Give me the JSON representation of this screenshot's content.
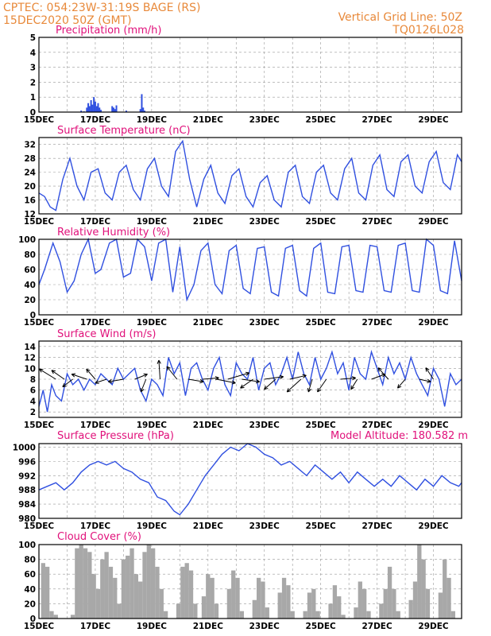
{
  "header": {
    "line1": "CPTEC:   054:23W-31:19S   BAGE (RS)",
    "line2": "15DEC2020  50Z  (GMT)",
    "grid_note": "Vertical Grid Line: 50Z",
    "code": "TQ0126L028"
  },
  "model_altitude": "Model Altitude: 180.582 m",
  "x_ticks": [
    "15DEC",
    "17DEC",
    "19DEC",
    "21DEC",
    "23DEC",
    "25DEC",
    "27DEC",
    "29DEC"
  ],
  "colors": {
    "series": "#3050e0",
    "title": "#e0107a",
    "header": "#e8893a",
    "cloud": "#a8a8a8",
    "grid": "#999999"
  },
  "chart_data": [
    {
      "type": "bar",
      "title": "Precipitation  (mm/h)",
      "ylim": [
        0,
        5
      ],
      "y_ticks": [
        0,
        1,
        2,
        3,
        4,
        5
      ],
      "xlim": [
        0,
        15
      ],
      "points": [
        [
          1.5,
          0.1
        ],
        [
          1.6,
          0.05
        ],
        [
          1.7,
          0.3
        ],
        [
          1.75,
          0.6
        ],
        [
          1.8,
          0.4
        ],
        [
          1.85,
          0.8
        ],
        [
          1.9,
          0.5
        ],
        [
          1.95,
          1.0
        ],
        [
          2.0,
          0.7
        ],
        [
          2.05,
          0.4
        ],
        [
          2.1,
          0.6
        ],
        [
          2.15,
          0.3
        ],
        [
          2.2,
          0.15
        ],
        [
          2.6,
          0.4
        ],
        [
          2.65,
          0.3
        ],
        [
          2.7,
          0.2
        ],
        [
          2.75,
          0.45
        ],
        [
          3.1,
          0.1
        ],
        [
          3.6,
          0.2
        ],
        [
          3.65,
          1.2
        ],
        [
          3.7,
          0.3
        ],
        [
          3.75,
          0.1
        ]
      ]
    },
    {
      "type": "line",
      "title": "Surface Temperature (nC)",
      "ylim": [
        12,
        34
      ],
      "y_ticks": [
        12,
        16,
        20,
        24,
        28,
        32
      ],
      "xlim": [
        0,
        15
      ],
      "x": [
        0,
        0.2,
        0.4,
        0.6,
        0.85,
        1.1,
        1.35,
        1.6,
        1.85,
        2.1,
        2.35,
        2.6,
        2.85,
        3.1,
        3.35,
        3.6,
        3.85,
        4.1,
        4.35,
        4.6,
        4.85,
        5.1,
        5.35,
        5.6,
        5.85,
        6.1,
        6.35,
        6.6,
        6.85,
        7.1,
        7.35,
        7.6,
        7.85,
        8.1,
        8.35,
        8.6,
        8.85,
        9.1,
        9.35,
        9.6,
        9.85,
        10.1,
        10.35,
        10.6,
        10.85,
        11.1,
        11.35,
        11.6,
        11.85,
        12.1,
        12.35,
        12.6,
        12.85,
        13.1,
        13.35,
        13.6,
        13.85,
        14.1,
        14.35,
        14.6,
        14.85,
        15
      ],
      "values": [
        18,
        17,
        14,
        13,
        22,
        28,
        20,
        16,
        24,
        25,
        18,
        16,
        24,
        26,
        19,
        16,
        25,
        28,
        20,
        17,
        30,
        33,
        22,
        14,
        22,
        26,
        18,
        15,
        23,
        25,
        17,
        14,
        21,
        23,
        16,
        14,
        24,
        26,
        17,
        15,
        24,
        26,
        18,
        16,
        25,
        28,
        18,
        16,
        26,
        29,
        19,
        17,
        27,
        29,
        20,
        18,
        27,
        30,
        21,
        19,
        29,
        27
      ]
    },
    {
      "type": "line",
      "title": "Relative Humidity  (%)",
      "ylim": [
        0,
        100
      ],
      "y_ticks": [
        0,
        20,
        40,
        60,
        80,
        100
      ],
      "xlim": [
        0,
        15
      ],
      "x": [
        0,
        0.2,
        0.5,
        0.75,
        1.0,
        1.25,
        1.5,
        1.75,
        2.0,
        2.2,
        2.5,
        2.75,
        3.0,
        3.25,
        3.5,
        3.75,
        4.0,
        4.25,
        4.5,
        4.75,
        5.0,
        5.25,
        5.5,
        5.75,
        6.0,
        6.25,
        6.5,
        6.75,
        7.0,
        7.25,
        7.5,
        7.75,
        8.0,
        8.25,
        8.5,
        8.75,
        9.0,
        9.25,
        9.5,
        9.75,
        10.0,
        10.25,
        10.5,
        10.75,
        11.0,
        11.25,
        11.5,
        11.75,
        12.0,
        12.25,
        12.5,
        12.75,
        13.0,
        13.25,
        13.5,
        13.75,
        14.0,
        14.25,
        14.5,
        14.75,
        15
      ],
      "values": [
        40,
        60,
        95,
        70,
        30,
        45,
        80,
        100,
        55,
        60,
        95,
        100,
        50,
        55,
        100,
        90,
        45,
        95,
        100,
        30,
        90,
        20,
        40,
        85,
        95,
        40,
        28,
        85,
        92,
        35,
        28,
        88,
        90,
        30,
        25,
        88,
        92,
        32,
        25,
        88,
        95,
        30,
        28,
        90,
        92,
        32,
        30,
        92,
        90,
        32,
        30,
        92,
        95,
        32,
        30,
        100,
        92,
        32,
        28,
        98,
        45
      ]
    },
    {
      "type": "line",
      "title": "Surface Wind  (m/s)",
      "ylim": [
        1,
        15
      ],
      "y_ticks": [
        2,
        4,
        6,
        8,
        10,
        12,
        14
      ],
      "xlim": [
        0,
        15
      ],
      "x": [
        0,
        0.15,
        0.3,
        0.45,
        0.6,
        0.8,
        1.0,
        1.2,
        1.4,
        1.6,
        1.8,
        2.0,
        2.2,
        2.4,
        2.6,
        2.8,
        3.0,
        3.2,
        3.4,
        3.6,
        3.8,
        4.0,
        4.2,
        4.4,
        4.6,
        4.8,
        5.0,
        5.2,
        5.4,
        5.6,
        5.8,
        6.0,
        6.2,
        6.4,
        6.6,
        6.8,
        7.0,
        7.2,
        7.4,
        7.6,
        7.8,
        8.0,
        8.2,
        8.4,
        8.6,
        8.8,
        9.0,
        9.2,
        9.4,
        9.6,
        9.8,
        10.0,
        10.2,
        10.4,
        10.6,
        10.8,
        11.0,
        11.2,
        11.4,
        11.6,
        11.8,
        12.0,
        12.2,
        12.4,
        12.6,
        12.8,
        13.0,
        13.2,
        13.4,
        13.6,
        13.8,
        14.0,
        14.2,
        14.4,
        14.6,
        14.8,
        15
      ],
      "values": [
        3,
        6,
        2,
        7,
        5,
        4,
        9,
        7,
        8,
        6,
        8,
        7,
        9,
        8,
        7,
        10,
        8,
        9,
        10,
        6,
        4,
        8,
        7,
        5,
        12,
        9,
        11,
        5,
        10,
        11,
        8,
        6,
        10,
        12,
        7,
        5,
        11,
        9,
        8,
        12,
        6,
        10,
        11,
        7,
        9,
        12,
        8,
        13,
        9,
        7,
        12,
        8,
        10,
        13,
        9,
        11,
        6,
        12,
        9,
        8,
        13,
        10,
        7,
        12,
        9,
        11,
        8,
        12,
        9,
        7,
        5,
        10,
        8,
        3,
        9,
        7,
        8
      ]
    },
    {
      "type": "line",
      "title": "Surface Pressure (hPa)",
      "ylim": [
        980,
        1001
      ],
      "y_ticks": [
        980,
        984,
        988,
        992,
        996,
        1000
      ],
      "xlim": [
        0,
        15
      ],
      "x": [
        0,
        0.3,
        0.6,
        0.9,
        1.2,
        1.5,
        1.8,
        2.1,
        2.4,
        2.7,
        3.0,
        3.3,
        3.6,
        3.9,
        4.2,
        4.5,
        4.8,
        5.0,
        5.3,
        5.6,
        5.9,
        6.2,
        6.5,
        6.8,
        7.1,
        7.4,
        7.7,
        8.0,
        8.3,
        8.6,
        8.9,
        9.2,
        9.5,
        9.8,
        10.1,
        10.4,
        10.7,
        11.0,
        11.3,
        11.6,
        11.9,
        12.2,
        12.5,
        12.8,
        13.1,
        13.4,
        13.7,
        14.0,
        14.3,
        14.6,
        14.9,
        15
      ],
      "values": [
        988,
        989,
        990,
        988,
        990,
        993,
        995,
        996,
        995,
        996,
        994,
        993,
        991,
        990,
        986,
        985,
        982,
        981,
        984,
        988,
        992,
        995,
        998,
        1000,
        999,
        1001,
        1000,
        998,
        997,
        995,
        996,
        994,
        992,
        995,
        993,
        991,
        993,
        990,
        993,
        991,
        989,
        991,
        989,
        992,
        990,
        988,
        991,
        989,
        992,
        990,
        989,
        990
      ]
    },
    {
      "type": "bar",
      "title": "Cloud Cover  (%)",
      "ylim": [
        0,
        100
      ],
      "y_ticks": [
        0,
        20,
        40,
        60,
        80,
        100
      ],
      "xlim": [
        0,
        15
      ],
      "x": [
        0.15,
        0.3,
        0.45,
        0.6,
        0.75,
        0.9,
        1.05,
        1.2,
        1.35,
        1.5,
        1.65,
        1.8,
        1.95,
        2.1,
        2.25,
        2.4,
        2.55,
        2.7,
        2.85,
        3.0,
        3.15,
        3.3,
        3.45,
        3.6,
        3.75,
        3.9,
        4.05,
        4.2,
        4.35,
        4.5,
        4.65,
        4.8,
        4.95,
        5.1,
        5.25,
        5.4,
        5.55,
        5.7,
        5.85,
        6.0,
        6.15,
        6.3,
        6.45,
        6.6,
        6.75,
        6.9,
        7.05,
        7.2,
        7.35,
        7.5,
        7.65,
        7.8,
        7.95,
        8.1,
        8.25,
        8.4,
        8.55,
        8.7,
        8.85,
        9.0,
        9.15,
        9.3,
        9.45,
        9.6,
        9.75,
        9.9,
        10.05,
        10.2,
        10.35,
        10.5,
        10.65,
        10.8,
        10.95,
        11.1,
        11.25,
        11.4,
        11.55,
        11.7,
        11.85,
        12.0,
        12.15,
        12.3,
        12.45,
        12.6,
        12.75,
        12.9,
        13.05,
        13.2,
        13.35,
        13.5,
        13.65,
        13.8,
        13.95,
        14.1,
        14.25,
        14.4,
        14.55,
        14.7,
        14.85
      ],
      "values": [
        75,
        70,
        10,
        5,
        0,
        0,
        0,
        5,
        95,
        100,
        95,
        90,
        60,
        40,
        80,
        90,
        70,
        55,
        20,
        80,
        85,
        95,
        60,
        50,
        90,
        100,
        95,
        70,
        40,
        10,
        0,
        0,
        20,
        70,
        75,
        65,
        20,
        0,
        30,
        60,
        55,
        20,
        0,
        0,
        40,
        65,
        55,
        10,
        0,
        0,
        25,
        55,
        50,
        15,
        0,
        0,
        35,
        55,
        45,
        10,
        0,
        0,
        10,
        35,
        40,
        10,
        0,
        0,
        20,
        45,
        30,
        5,
        0,
        0,
        15,
        50,
        40,
        10,
        0,
        0,
        20,
        40,
        70,
        40,
        10,
        0,
        0,
        25,
        50,
        100,
        80,
        40,
        0,
        0,
        35,
        80,
        55,
        10,
        0
      ]
    }
  ],
  "wind_vectors": [
    {
      "t": 0.6,
      "dx": -1.3,
      "dy": 0.8
    },
    {
      "t": 0.9,
      "dx": -1.0,
      "dy": 0.7
    },
    {
      "t": 1.2,
      "dx": -0.8,
      "dy": -0.6
    },
    {
      "t": 1.7,
      "dx": -1.2,
      "dy": 0.4
    },
    {
      "t": 2.0,
      "dx": -0.7,
      "dy": 0.8
    },
    {
      "t": 2.4,
      "dx": -0.9,
      "dy": -0.3
    },
    {
      "t": 3.0,
      "dx": -1.2,
      "dy": -0.2
    },
    {
      "t": 3.4,
      "dx": 1.0,
      "dy": 0.4
    },
    {
      "t": 3.8,
      "dx": -0.4,
      "dy": -1.0
    },
    {
      "t": 4.3,
      "dx": -0.1,
      "dy": 1.5
    },
    {
      "t": 4.9,
      "dx": -0.8,
      "dy": 1.0
    },
    {
      "t": 5.3,
      "dx": 1.2,
      "dy": -0.2
    },
    {
      "t": 5.8,
      "dx": 1.3,
      "dy": 0.1
    },
    {
      "t": 6.3,
      "dx": 1.5,
      "dy": -0.3
    },
    {
      "t": 6.7,
      "dx": 1.7,
      "dy": 0.5
    },
    {
      "t": 7.2,
      "dx": 1.4,
      "dy": -0.2
    },
    {
      "t": 7.6,
      "dx": -1.0,
      "dy": -0.7
    },
    {
      "t": 8.0,
      "dx": 1.5,
      "dy": 0.2
    },
    {
      "t": 8.4,
      "dx": -0.9,
      "dy": -0.8
    },
    {
      "t": 8.9,
      "dx": 1.3,
      "dy": 0.3
    },
    {
      "t": 9.3,
      "dx": -1.1,
      "dy": -1.0
    },
    {
      "t": 9.7,
      "dx": -0.3,
      "dy": -1.0
    },
    {
      "t": 10.2,
      "dx": -0.7,
      "dy": -1.0
    },
    {
      "t": 10.7,
      "dx": 1.2,
      "dy": 0.1
    },
    {
      "t": 11.3,
      "dx": -0.5,
      "dy": -0.8
    },
    {
      "t": 11.8,
      "dx": 1.1,
      "dy": 0.4
    },
    {
      "t": 12.4,
      "dx": -0.8,
      "dy": 0.9
    },
    {
      "t": 13.0,
      "dx": -0.6,
      "dy": -0.7
    },
    {
      "t": 13.5,
      "dx": 0.9,
      "dy": -0.2
    },
    {
      "t": 14.0,
      "dx": -0.6,
      "dy": 0.9
    }
  ]
}
